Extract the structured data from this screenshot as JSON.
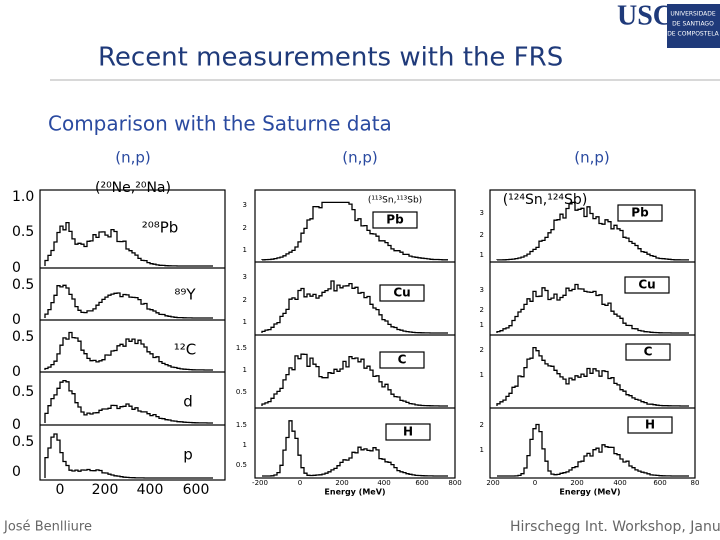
{
  "header": {
    "title": "Recent measurements with the FRS",
    "logo": "USC",
    "logo_text_1": "UNIVERSIDADE",
    "logo_text_2": "DE SANTIAGO",
    "logo_text_3": "DE COMPOSTELA"
  },
  "subtitle": "Comparison with the Saturne data",
  "panels": [
    {
      "reaction": "(n,p)",
      "system": "(²⁰Ne,²⁰Na)",
      "targets": [
        "²⁰⁸Pb",
        "⁸⁹Y",
        "¹²C",
        "d",
        "p"
      ],
      "y_labels": [
        "1.0",
        "0.5",
        "0",
        "0.5",
        "0",
        "0.5",
        "0",
        "0.5",
        "0",
        "0.5",
        "0"
      ],
      "x_labels": [
        "0",
        "200",
        "400",
        "600"
      ]
    },
    {
      "reaction": "(n,p)",
      "system": "(¹¹³Sn,¹¹³Sb)",
      "targets": [
        "Pb",
        "Cu",
        "C",
        "H"
      ],
      "y_labels": [
        "3",
        "2",
        "1",
        "3",
        "2",
        "1",
        "1.5",
        "1",
        "0.5",
        "1.5",
        "1",
        "0.5"
      ],
      "x_labels": [
        "-200",
        "0",
        "200",
        "400",
        "600",
        "800"
      ],
      "x_title": "Energy (MeV)"
    },
    {
      "reaction": "(n,p)",
      "system": "(¹²⁴Sn,¹²⁴Sb)",
      "targets": [
        "Pb",
        "Cu",
        "C",
        "H"
      ],
      "y_labels": [
        "3",
        "2",
        "1",
        "3",
        "2",
        "1",
        "2",
        "1",
        "2",
        "1"
      ],
      "x_labels": [
        "200",
        "0",
        "200",
        "400",
        "600",
        "80"
      ],
      "x_title": "Energy (MeV)"
    }
  ],
  "footer": {
    "left": "José Benlliure",
    "right": "Hirschegg Int. Workshop, Janua"
  }
}
